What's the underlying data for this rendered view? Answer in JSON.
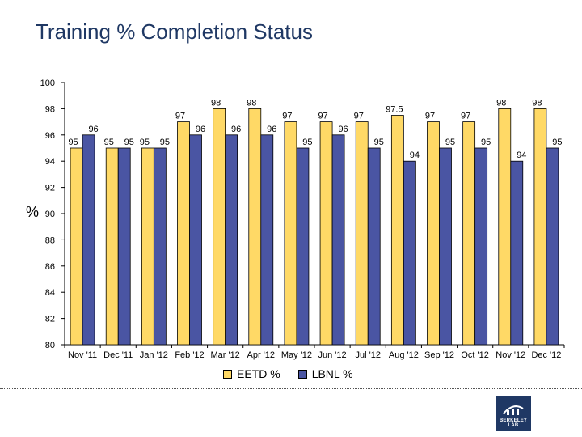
{
  "title": "Training % Completion Status",
  "ylabel": "%",
  "legend": {
    "eetd": "EETD %",
    "lbnl": "LBNL %"
  },
  "logo": {
    "text": "BERKELEY LAB"
  },
  "colors": {
    "eetd": "#ffd966",
    "lbnl": "#4a55a3",
    "title": "#1f3864"
  },
  "chart_data": {
    "type": "bar",
    "categories": [
      "Nov '11",
      "Dec '11",
      "Jan '12",
      "Feb '12",
      "Mar '12",
      "Apr '12",
      "May '12",
      "Jun '12",
      "Jul '12",
      "Aug '12",
      "Sep '12",
      "Oct '12",
      "Nov '12",
      "Dec '12"
    ],
    "series": [
      {
        "name": "EETD %",
        "values": [
          95,
          95,
          95,
          97,
          98,
          98,
          97,
          97,
          97,
          97.5,
          97,
          97,
          98,
          98
        ]
      },
      {
        "name": "LBNL %",
        "values": [
          96,
          95,
          95,
          96,
          96,
          96,
          95,
          96,
          95,
          94,
          95,
          95,
          94,
          95
        ]
      }
    ],
    "ylim": [
      80,
      100
    ],
    "yticks": [
      80,
      82,
      84,
      86,
      88,
      90,
      92,
      94,
      96,
      98,
      100
    ],
    "xlabel": "",
    "ylabel": "%",
    "legend_position": "bottom",
    "grid": false
  }
}
